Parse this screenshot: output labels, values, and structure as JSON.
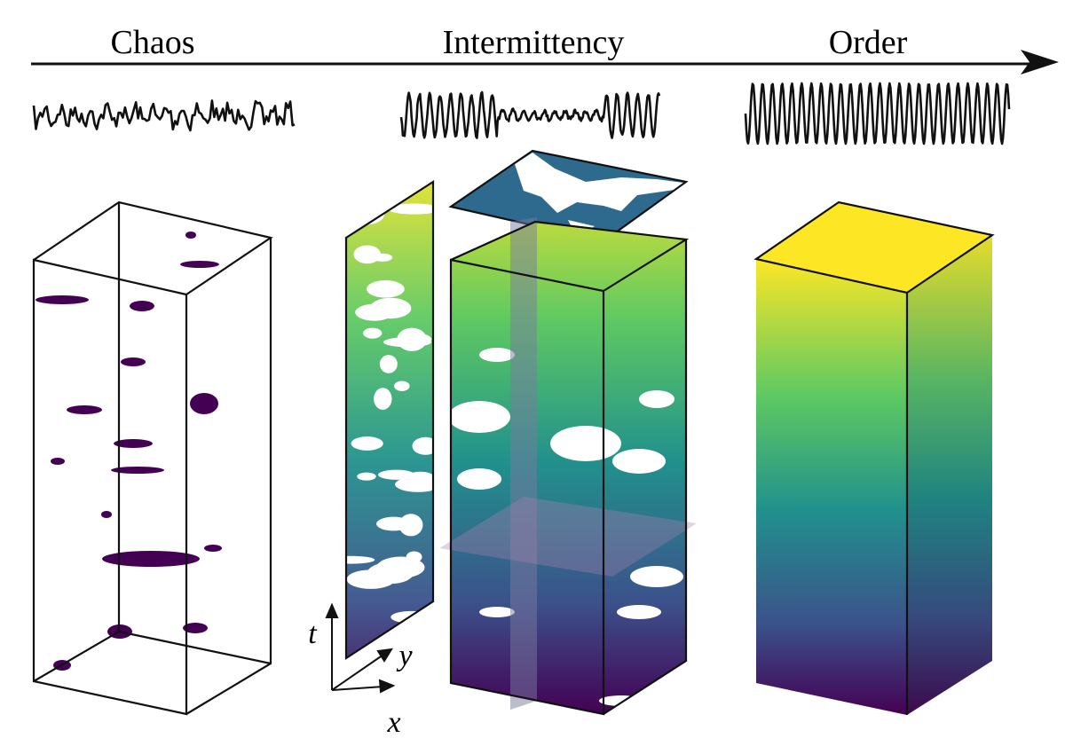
{
  "regimes": [
    {
      "label": "Chaos"
    },
    {
      "label": "Intermittency"
    },
    {
      "label": "Order"
    }
  ],
  "axes": {
    "t": "t",
    "y": "y",
    "x": "x"
  }
}
